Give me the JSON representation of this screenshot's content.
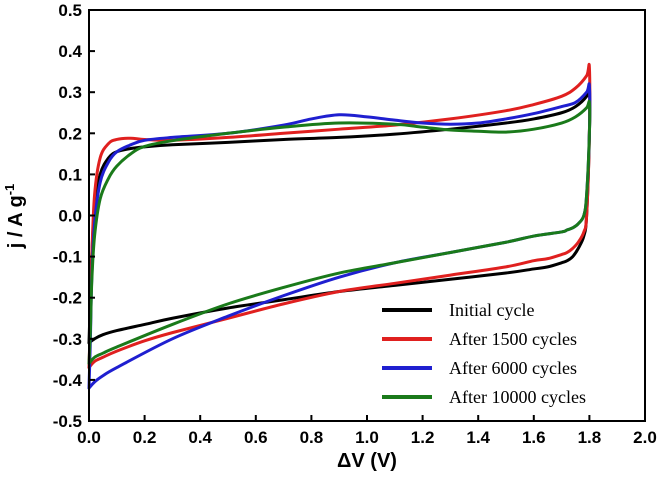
{
  "chart_data": {
    "type": "line",
    "title": "",
    "xlabel": "ΔV (V)",
    "ylabel": "j / A g",
    "ylabel_superscript": "-1",
    "xlim": [
      0.0,
      2.0
    ],
    "ylim": [
      -0.5,
      0.5
    ],
    "xticks": [
      "0.0",
      "0.2",
      "0.4",
      "0.6",
      "0.8",
      "1.0",
      "1.2",
      "1.4",
      "1.6",
      "1.8",
      "2.0"
    ],
    "yticks": [
      "-0.5",
      "-0.4",
      "-0.3",
      "-0.2",
      "-0.1",
      "0.0",
      "0.1",
      "0.2",
      "0.3",
      "0.4",
      "0.5"
    ],
    "grid": false,
    "legend_position": "bottom-right",
    "series": [
      {
        "name": "Initial cycle",
        "color": "#000000",
        "x": [
          0.0,
          0.005,
          0.01,
          0.02,
          0.04,
          0.07,
          0.1,
          0.15,
          0.2,
          0.3,
          0.5,
          0.7,
          0.9,
          1.1,
          1.3,
          1.5,
          1.6,
          1.7,
          1.75,
          1.79,
          1.8,
          1.8,
          1.79,
          1.78,
          1.76,
          1.74,
          1.72,
          1.7,
          1.65,
          1.6,
          1.5,
          1.3,
          1.1,
          0.9,
          0.7,
          0.5,
          0.3,
          0.2,
          0.1,
          0.05,
          0.02,
          0.0
        ],
        "y": [
          -0.31,
          -0.2,
          -0.1,
          0.02,
          0.1,
          0.14,
          0.155,
          0.163,
          0.167,
          0.172,
          0.178,
          0.185,
          0.19,
          0.198,
          0.21,
          0.225,
          0.235,
          0.25,
          0.265,
          0.29,
          0.31,
          0.2,
          0.0,
          -0.05,
          -0.08,
          -0.1,
          -0.11,
          -0.115,
          -0.125,
          -0.13,
          -0.14,
          -0.155,
          -0.17,
          -0.185,
          -0.205,
          -0.225,
          -0.25,
          -0.265,
          -0.28,
          -0.29,
          -0.3,
          -0.31
        ]
      },
      {
        "name": "After 1500 cycles",
        "color": "#e0201f",
        "x": [
          0.0,
          0.005,
          0.01,
          0.02,
          0.04,
          0.07,
          0.1,
          0.15,
          0.2,
          0.3,
          0.5,
          0.7,
          0.9,
          1.1,
          1.3,
          1.5,
          1.6,
          1.7,
          1.75,
          1.79,
          1.8,
          1.8,
          1.79,
          1.78,
          1.76,
          1.74,
          1.72,
          1.7,
          1.65,
          1.6,
          1.5,
          1.3,
          1.1,
          0.9,
          0.7,
          0.5,
          0.3,
          0.2,
          0.1,
          0.05,
          0.02,
          0.0
        ],
        "y": [
          -0.37,
          -0.25,
          -0.1,
          0.05,
          0.14,
          0.175,
          0.185,
          0.188,
          0.185,
          0.183,
          0.19,
          0.2,
          0.21,
          0.22,
          0.235,
          0.255,
          0.27,
          0.29,
          0.31,
          0.34,
          0.36,
          0.2,
          0.0,
          -0.04,
          -0.065,
          -0.08,
          -0.09,
          -0.095,
          -0.105,
          -0.11,
          -0.125,
          -0.145,
          -0.165,
          -0.185,
          -0.215,
          -0.25,
          -0.285,
          -0.305,
          -0.33,
          -0.345,
          -0.355,
          -0.37
        ]
      },
      {
        "name": "After 6000 cycles",
        "color": "#1f1fd0",
        "x": [
          0.0,
          0.005,
          0.01,
          0.02,
          0.04,
          0.07,
          0.1,
          0.15,
          0.2,
          0.3,
          0.5,
          0.7,
          0.8,
          0.9,
          1.0,
          1.1,
          1.2,
          1.3,
          1.4,
          1.5,
          1.6,
          1.7,
          1.75,
          1.79,
          1.8,
          1.8,
          1.79,
          1.78,
          1.76,
          1.74,
          1.72,
          1.7,
          1.6,
          1.5,
          1.3,
          1.1,
          0.9,
          0.7,
          0.5,
          0.3,
          0.1,
          0.05,
          0.02,
          0.0
        ],
        "y": [
          -0.42,
          -0.3,
          -0.15,
          -0.02,
          0.08,
          0.13,
          0.155,
          0.172,
          0.183,
          0.19,
          0.2,
          0.22,
          0.235,
          0.245,
          0.24,
          0.232,
          0.225,
          0.222,
          0.225,
          0.235,
          0.248,
          0.265,
          0.275,
          0.3,
          0.315,
          0.2,
          0.05,
          0.0,
          -0.02,
          -0.03,
          -0.035,
          -0.04,
          -0.05,
          -0.065,
          -0.09,
          -0.115,
          -0.15,
          -0.195,
          -0.245,
          -0.3,
          -0.37,
          -0.39,
          -0.405,
          -0.42
        ]
      },
      {
        "name": "After 10000 cycles",
        "color": "#1a7a1a",
        "x": [
          0.0,
          0.005,
          0.01,
          0.02,
          0.04,
          0.07,
          0.1,
          0.15,
          0.2,
          0.3,
          0.5,
          0.7,
          0.9,
          1.1,
          1.2,
          1.3,
          1.4,
          1.5,
          1.6,
          1.7,
          1.75,
          1.79,
          1.8,
          1.8,
          1.79,
          1.78,
          1.76,
          1.74,
          1.72,
          1.7,
          1.6,
          1.5,
          1.3,
          1.1,
          0.9,
          0.7,
          0.5,
          0.3,
          0.1,
          0.05,
          0.02,
          0.0
        ],
        "y": [
          -0.36,
          -0.28,
          -0.16,
          -0.05,
          0.04,
          0.09,
          0.12,
          0.15,
          0.168,
          0.182,
          0.2,
          0.215,
          0.225,
          0.222,
          0.215,
          0.208,
          0.205,
          0.203,
          0.21,
          0.225,
          0.24,
          0.262,
          0.275,
          0.2,
          0.05,
          0.0,
          -0.02,
          -0.03,
          -0.035,
          -0.04,
          -0.05,
          -0.065,
          -0.09,
          -0.115,
          -0.14,
          -0.175,
          -0.215,
          -0.265,
          -0.32,
          -0.335,
          -0.345,
          -0.36
        ]
      }
    ]
  }
}
